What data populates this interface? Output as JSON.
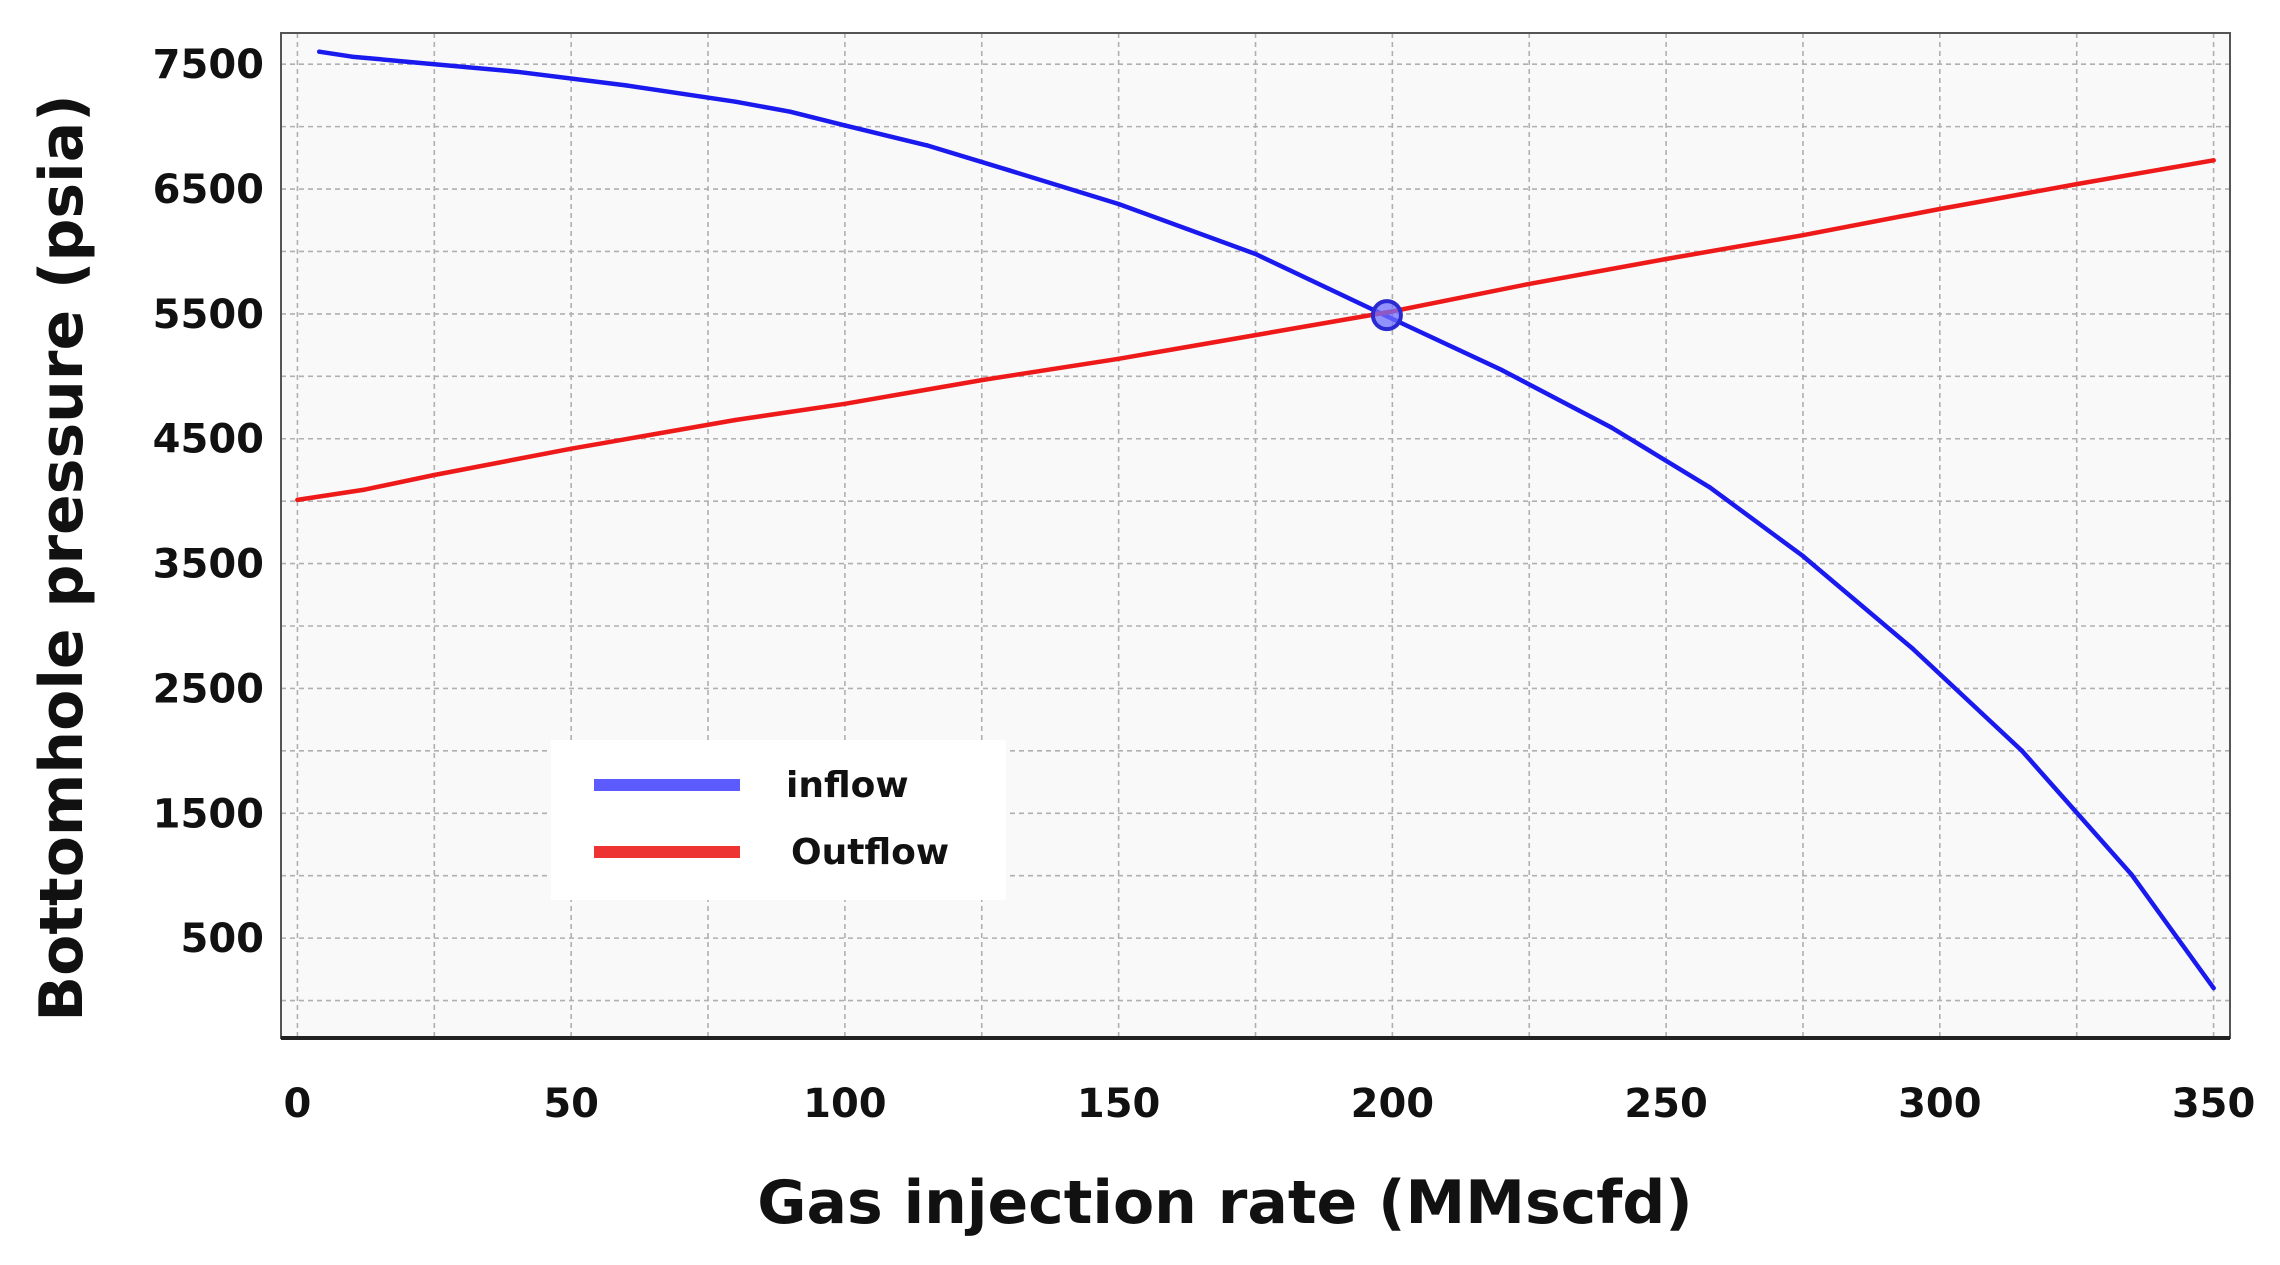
{
  "chart_data": {
    "type": "line",
    "title": "",
    "xlabel": "Gas injection rate (MMscfd)",
    "ylabel": "Bottomhole pressure (psia)",
    "xlim": [
      -3,
      353
    ],
    "ylim": [
      -300,
      7750
    ],
    "grid": true,
    "x_ticks": [
      0,
      50,
      100,
      150,
      200,
      250,
      300,
      350
    ],
    "y_ticks": [
      500,
      1500,
      2500,
      3500,
      4500,
      5500,
      6500,
      7500
    ],
    "legend_position": "lower-left",
    "series": [
      {
        "name": "inflow",
        "color": "#1a1aee",
        "legend_color": "#5b5bff",
        "x": [
          4,
          10,
          20,
          40,
          60,
          80,
          90,
          100,
          115,
          130,
          150,
          175,
          200,
          220,
          240,
          258,
          275,
          295,
          315,
          335,
          350
        ],
        "y": [
          7600,
          7560,
          7520,
          7440,
          7330,
          7200,
          7120,
          7010,
          6850,
          6650,
          6380,
          5980,
          5460,
          5050,
          4590,
          4110,
          3560,
          2820,
          2000,
          1010,
          100
        ]
      },
      {
        "name": "Outflow",
        "color": "#ee1a1a",
        "legend_color": "#ee3333",
        "x": [
          0,
          12,
          25,
          50,
          80,
          100,
          125,
          150,
          175,
          200,
          225,
          250,
          275,
          300,
          325,
          350
        ],
        "y": [
          4010,
          4090,
          4210,
          4420,
          4650,
          4780,
          4970,
          5140,
          5330,
          5520,
          5740,
          5940,
          6130,
          6340,
          6540,
          6730
        ]
      }
    ],
    "intersection": {
      "x": 199,
      "y": 5490,
      "color": "#3333ff"
    }
  }
}
